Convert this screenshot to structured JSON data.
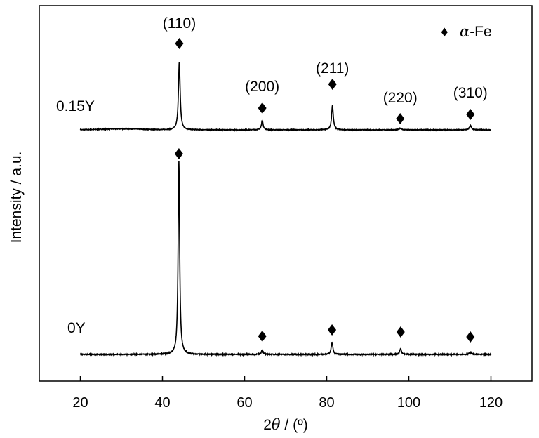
{
  "chart_data": {
    "type": "line",
    "xlabel": "2θ / (º)",
    "xlabel_parts": {
      "prefix": "2",
      "symbol": "θ",
      "suffix": " / (º)"
    },
    "ylabel": "Intensity / a.u.",
    "xlim": [
      10,
      130
    ],
    "xticks": [
      20,
      40,
      60,
      80,
      100,
      120
    ],
    "grid": false,
    "legend": {
      "marker": "♦",
      "symbol": "α",
      "text": "-Fe",
      "placement": "top-right"
    },
    "series": [
      {
        "name": "0.15Y",
        "baseline": 0.16,
        "noise": 0.004,
        "hump": {
          "center": 30,
          "width": 5,
          "height": 0.012
        },
        "peaks": [
          {
            "x": 44.1,
            "height": 0.81,
            "width": 0.25
          },
          {
            "x": 64.3,
            "height": 0.11,
            "width": 0.25
          },
          {
            "x": 81.4,
            "height": 0.29,
            "width": 0.25
          },
          {
            "x": 97.9,
            "height": 0.02,
            "width": 0.3
          },
          {
            "x": 115.0,
            "height": 0.05,
            "width": 0.3
          }
        ]
      },
      {
        "name": "0Y",
        "baseline": 0.0,
        "noise": 0.004,
        "hump": {
          "center": 30,
          "width": 5,
          "height": 0.0
        },
        "peaks": [
          {
            "x": 44.0,
            "height": 1.72,
            "width": 0.22
          },
          {
            "x": 64.3,
            "height": 0.04,
            "width": 0.25
          },
          {
            "x": 81.3,
            "height": 0.11,
            "width": 0.25
          },
          {
            "x": 98.0,
            "height": 0.05,
            "width": 0.25
          },
          {
            "x": 115.0,
            "height": 0.02,
            "width": 0.3
          }
        ]
      }
    ],
    "annotations": [
      {
        "series": "0.15Y",
        "x": 44.1,
        "text": "(110)"
      },
      {
        "series": "0.15Y",
        "x": 64.3,
        "text": "(200)"
      },
      {
        "series": "0.15Y",
        "x": 81.4,
        "text": "(211)"
      },
      {
        "series": "0.15Y",
        "x": 97.9,
        "text": "(220)"
      },
      {
        "series": "0.15Y",
        "x": 115.0,
        "text": "(310)"
      }
    ],
    "marker_positions": {
      "0.15Y": [
        44.1,
        64.3,
        81.4,
        97.9,
        115.0
      ],
      "0Y": [
        44.0,
        64.3,
        81.3,
        98.0,
        115.0
      ]
    }
  }
}
